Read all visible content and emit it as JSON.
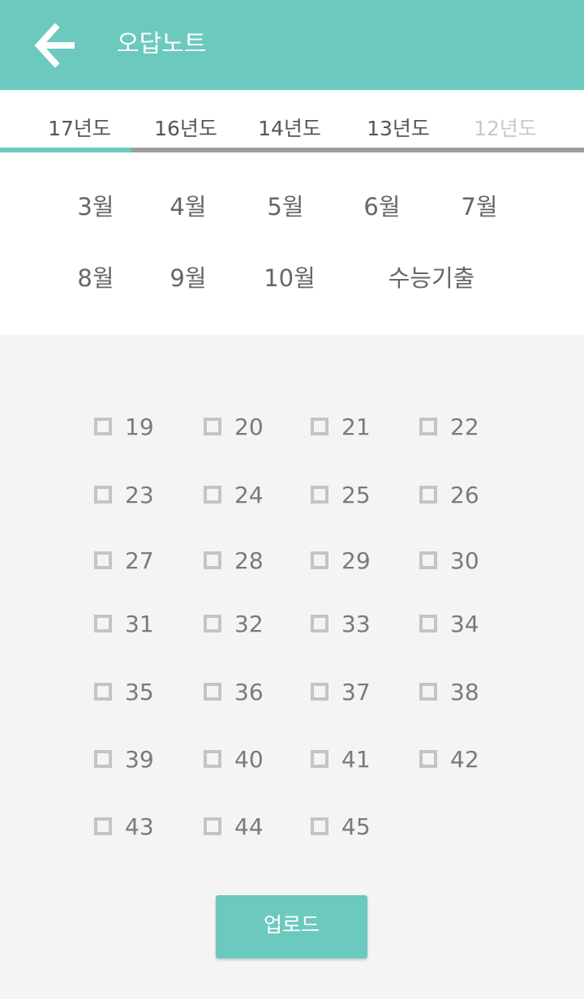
{
  "header": {
    "title": "오답노트",
    "back_icon": "arrow-left-icon"
  },
  "tabs": [
    "17년도",
    "16년도",
    "14년도",
    "13년도",
    "12년도"
  ],
  "months": [
    "3월",
    "4월",
    "5월",
    "6월",
    "7월",
    "8월",
    "9월",
    "10월",
    "수능기출"
  ],
  "questions": [
    "19",
    "20",
    "21",
    "22",
    "23",
    "24",
    "25",
    "26",
    "27",
    "28",
    "29",
    "30",
    "31",
    "32",
    "33",
    "34",
    "35",
    "36",
    "37",
    "38",
    "39",
    "40",
    "41",
    "42",
    "43",
    "44",
    "45"
  ],
  "upload_label": "업로드",
  "colors": {
    "accent": "#6cc9be",
    "track": "#9d9d9d",
    "background": "#f4f4f4"
  }
}
